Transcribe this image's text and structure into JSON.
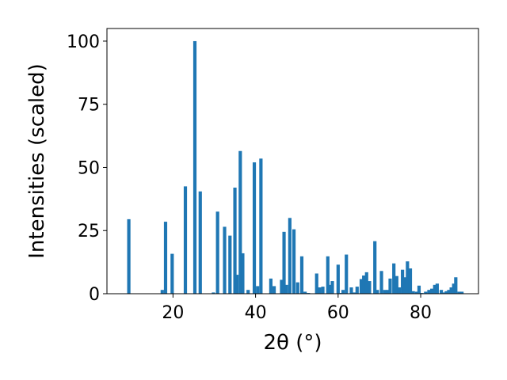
{
  "chart_data": {
    "type": "bar",
    "title": "",
    "xlabel": "2θ (°)",
    "ylabel": "Intensities (scaled)",
    "xlim": [
      4,
      94
    ],
    "ylim": [
      0,
      105
    ],
    "xticks": [
      20,
      40,
      60,
      80
    ],
    "yticks": [
      0,
      25,
      50,
      75,
      100
    ],
    "bar_color": "#1f77b4",
    "bar_width": 0.8,
    "grid": false,
    "legend": "none",
    "series": [
      {
        "x": [
          9.3,
          17.4,
          18.2,
          19.8,
          23.0,
          25.3,
          26.6,
          29.8,
          30.8,
          32.5,
          33.8,
          35.0,
          35.5,
          36.3,
          36.9,
          38.2,
          39.7,
          40.5,
          41.3,
          43.7,
          44.5,
          46.3,
          46.9,
          47.5,
          48.3,
          49.3,
          50.2,
          51.2,
          52.0,
          52.8,
          54.8,
          55.5,
          56.3,
          57.5,
          58.0,
          58.6,
          60.0,
          60.7,
          61.2,
          62.0,
          63.2,
          63.9,
          64.6,
          65.6,
          66.2,
          66.9,
          67.6,
          68.9,
          69.5,
          70.5,
          71.3,
          72.0,
          72.6,
          73.5,
          74.2,
          74.8,
          75.6,
          76.1,
          76.8,
          77.5,
          78.2,
          79.0,
          79.6,
          80.3,
          81.2,
          82.0,
          82.7,
          83.4,
          84.0,
          85.0,
          85.6,
          86.2,
          86.8,
          87.4,
          88.0,
          88.5,
          89.3,
          90.0
        ],
        "values": [
          29.5,
          1.5,
          28.5,
          15.8,
          42.5,
          100,
          40.5,
          0.5,
          32.5,
          26.5,
          23.0,
          42.0,
          7.5,
          56.5,
          16.0,
          1.5,
          52.0,
          3.0,
          53.5,
          6.0,
          3.0,
          5.5,
          24.5,
          3.5,
          30.0,
          25.5,
          4.5,
          14.8,
          0.8,
          0.3,
          8.0,
          2.5,
          2.8,
          14.8,
          3.5,
          5.0,
          11.5,
          0.3,
          1.5,
          15.5,
          2.5,
          0.5,
          2.8,
          5.8,
          7.2,
          8.5,
          5.0,
          20.8,
          1.5,
          9.0,
          1.5,
          1.5,
          6.0,
          12.0,
          7.0,
          2.5,
          9.5,
          6.5,
          12.8,
          10.0,
          1.0,
          0.8,
          3.2,
          0.3,
          0.8,
          1.5,
          2.0,
          3.5,
          4.0,
          1.5,
          0.5,
          1.0,
          1.5,
          2.5,
          4.0,
          6.5,
          0.8,
          0.8
        ]
      }
    ]
  }
}
